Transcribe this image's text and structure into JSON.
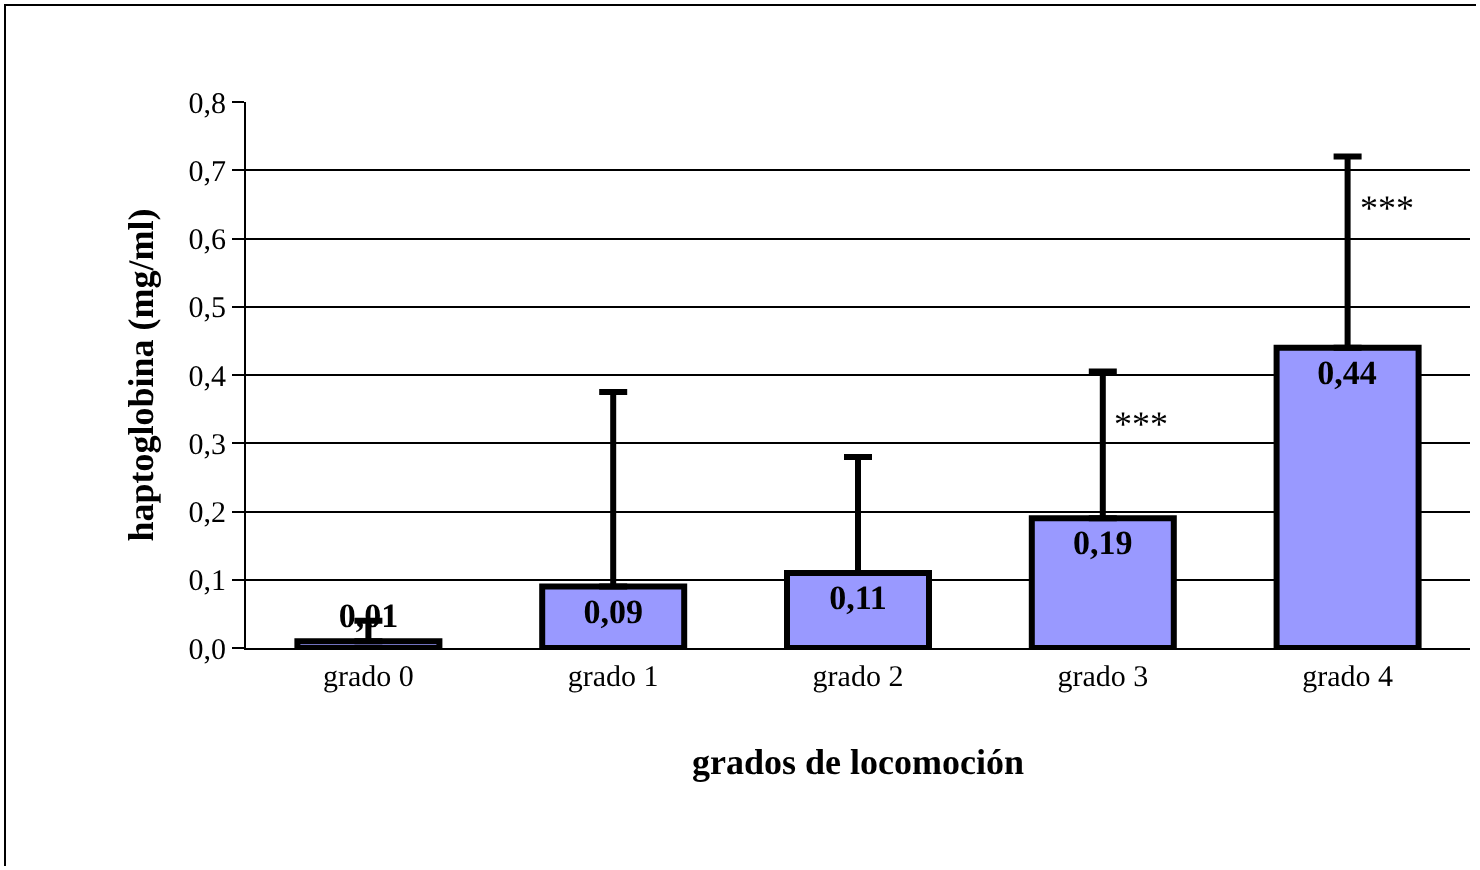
{
  "chart_data": {
    "type": "bar",
    "xlabel": "grados de locomoción",
    "ylabel": "haptoglobina (mg/ml)",
    "categories": [
      "grado 0",
      "grado 1",
      "grado 2",
      "grado 3",
      "grado 4"
    ],
    "values": [
      0.01,
      0.09,
      0.11,
      0.19,
      0.44
    ],
    "value_labels": [
      "0,01",
      "0,09",
      "0,11",
      "0,19",
      "0,44"
    ],
    "errors": [
      [
        0.01,
        0.04
      ],
      [
        0.09,
        0.375
      ],
      [
        0.11,
        0.28
      ],
      [
        0.19,
        0.405
      ],
      [
        0.44,
        0.72
      ]
    ],
    "color": "#9999ff",
    "ylim": [
      0,
      0.8
    ],
    "yticks": [
      {
        "value": 0,
        "label": "0,0"
      },
      {
        "value": 0.1,
        "label": "0,1"
      },
      {
        "value": 0.2,
        "label": "0,2"
      },
      {
        "value": 0.3,
        "label": "0,3"
      },
      {
        "value": 0.4,
        "label": "0,4"
      },
      {
        "value": 0.5,
        "label": "0,5"
      },
      {
        "value": 0.6,
        "label": "0,6"
      },
      {
        "value": 0.7,
        "label": "0,7"
      },
      {
        "value": 0.8,
        "label": "0,8"
      }
    ],
    "grid": "y",
    "annotations": [
      {
        "text": "***",
        "x": "grado 3",
        "y": 0.405
      },
      {
        "text": "***",
        "x": "grado 4",
        "y": 0.72
      }
    ]
  }
}
